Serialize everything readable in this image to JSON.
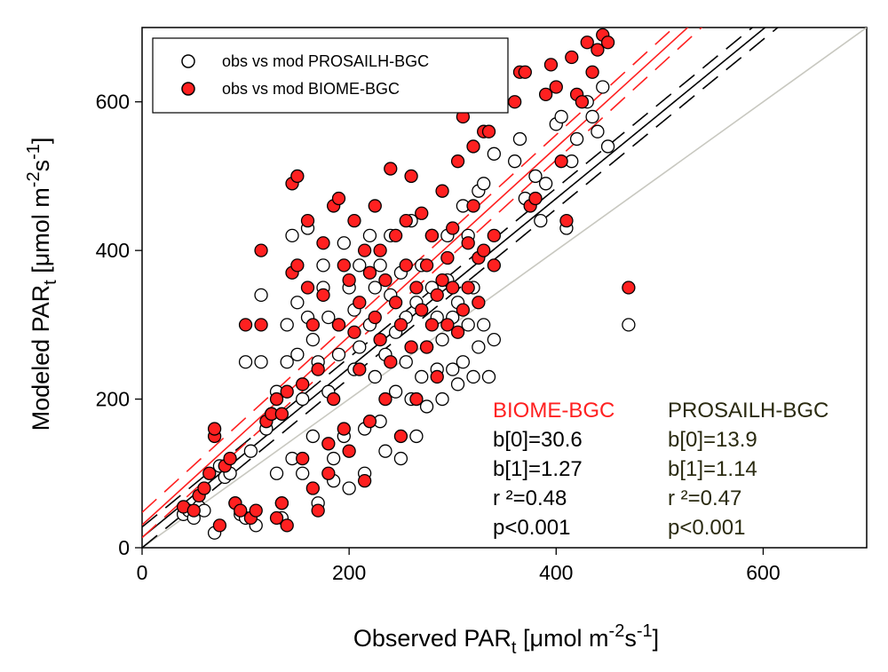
{
  "chart_data": {
    "type": "scatter",
    "xlim": [
      0,
      700
    ],
    "ylim": [
      0,
      700
    ],
    "x_ticks": [
      0,
      200,
      400,
      600
    ],
    "y_ticks": [
      0,
      200,
      400,
      600
    ],
    "xlabel": {
      "main": "Observed PAR",
      "sub": "t",
      "unit_pre": " [μmol m",
      "sup1": "-2",
      "mid": "s",
      "sup2": "-1",
      "end": "]"
    },
    "ylabel": {
      "main": "Modeled PAR",
      "sub": "t",
      "unit_pre": " [μmol m",
      "sup1": "-2",
      "mid": "s",
      "sup2": "-1",
      "end": "]"
    },
    "legend": {
      "position": "top-left",
      "entries": [
        {
          "label": "obs vs mod PROSAILH-BGC",
          "marker": "open-circle"
        },
        {
          "label": "obs vs mod BIOME-BGC",
          "marker": "filled-circle"
        }
      ]
    },
    "reference_line": {
      "name": "1:1",
      "intercept": 0,
      "slope": 1,
      "color": "#c8c8c0"
    },
    "series": [
      {
        "name": "PROSAILH-BGC",
        "marker": "open-circle",
        "stats_color": "#2a2a10",
        "stats": {
          "title": "PROSAILH-BGC",
          "b0": "b[0]=13.9",
          "b1": "b[1]=1.14",
          "r2": "r ²=0.47",
          "p": "p<0.001"
        },
        "fit": {
          "intercept": 13.9,
          "slope": 1.14,
          "ci_offset": 14,
          "color": "#000000"
        },
        "points": [
          [
            40,
            45
          ],
          [
            45,
            50
          ],
          [
            50,
            40
          ],
          [
            55,
            55
          ],
          [
            60,
            50
          ],
          [
            70,
            20
          ],
          [
            75,
            110
          ],
          [
            80,
            95
          ],
          [
            85,
            100
          ],
          [
            90,
            60
          ],
          [
            95,
            45
          ],
          [
            100,
            40
          ],
          [
            100,
            250
          ],
          [
            105,
            130
          ],
          [
            110,
            30
          ],
          [
            115,
            340
          ],
          [
            115,
            250
          ],
          [
            120,
            160
          ],
          [
            125,
            180
          ],
          [
            130,
            210
          ],
          [
            130,
            100
          ],
          [
            135,
            60
          ],
          [
            135,
            40
          ],
          [
            140,
            300
          ],
          [
            140,
            250
          ],
          [
            145,
            120
          ],
          [
            145,
            420
          ],
          [
            150,
            330
          ],
          [
            150,
            260
          ],
          [
            155,
            200
          ],
          [
            155,
            100
          ],
          [
            160,
            310
          ],
          [
            160,
            430
          ],
          [
            165,
            280
          ],
          [
            165,
            150
          ],
          [
            170,
            60
          ],
          [
            170,
            250
          ],
          [
            175,
            350
          ],
          [
            175,
            380
          ],
          [
            180,
            310
          ],
          [
            180,
            210
          ],
          [
            185,
            120
          ],
          [
            185,
            90
          ],
          [
            190,
            260
          ],
          [
            190,
            300
          ],
          [
            195,
            410
          ],
          [
            195,
            150
          ],
          [
            200,
            350
          ],
          [
            200,
            80
          ],
          [
            205,
            240
          ],
          [
            205,
            320
          ],
          [
            210,
            270
          ],
          [
            210,
            380
          ],
          [
            215,
            160
          ],
          [
            215,
            100
          ],
          [
            220,
            420
          ],
          [
            220,
            300
          ],
          [
            225,
            350
          ],
          [
            225,
            230
          ],
          [
            230,
            380
          ],
          [
            230,
            170
          ],
          [
            235,
            260
          ],
          [
            235,
            130
          ],
          [
            240,
            340
          ],
          [
            240,
            420
          ],
          [
            245,
            290
          ],
          [
            245,
            210
          ],
          [
            250,
            370
          ],
          [
            250,
            120
          ],
          [
            255,
            250
          ],
          [
            255,
            310
          ],
          [
            260,
            200
          ],
          [
            260,
            440
          ],
          [
            265,
            330
          ],
          [
            265,
            150
          ],
          [
            270,
            230
          ],
          [
            270,
            380
          ],
          [
            275,
            270
          ],
          [
            275,
            190
          ],
          [
            280,
            350
          ],
          [
            280,
            420
          ],
          [
            285,
            240
          ],
          [
            285,
            310
          ],
          [
            290,
            280
          ],
          [
            290,
            200
          ],
          [
            295,
            360
          ],
          [
            295,
            420
          ],
          [
            300,
            240
          ],
          [
            300,
            310
          ],
          [
            305,
            330
          ],
          [
            305,
            220
          ],
          [
            310,
            250
          ],
          [
            310,
            460
          ],
          [
            315,
            300
          ],
          [
            315,
            420
          ],
          [
            320,
            350
          ],
          [
            320,
            230
          ],
          [
            325,
            270
          ],
          [
            325,
            480
          ],
          [
            330,
            490
          ],
          [
            330,
            300
          ],
          [
            335,
            230
          ],
          [
            340,
            530
          ],
          [
            340,
            280
          ],
          [
            360,
            520
          ],
          [
            365,
            550
          ],
          [
            370,
            470
          ],
          [
            380,
            500
          ],
          [
            385,
            440
          ],
          [
            390,
            490
          ],
          [
            400,
            570
          ],
          [
            405,
            580
          ],
          [
            410,
            430
          ],
          [
            415,
            520
          ],
          [
            420,
            550
          ],
          [
            430,
            600
          ],
          [
            435,
            580
          ],
          [
            440,
            560
          ],
          [
            445,
            620
          ],
          [
            450,
            540
          ],
          [
            470,
            300
          ]
        ]
      },
      {
        "name": "BIOME-BGC",
        "marker": "filled-circle",
        "stats_color": "#ff2020",
        "stats": {
          "title": "BIOME-BGC",
          "b0": "b[0]=30.6",
          "b1": "b[1]=1.27",
          "r2": "r ²=0.48",
          "p": "p<0.001"
        },
        "fit": {
          "intercept": 30.6,
          "slope": 1.27,
          "ci_offset": 17,
          "color": "#ff2020"
        },
        "points": [
          [
            40,
            55
          ],
          [
            50,
            50
          ],
          [
            55,
            70
          ],
          [
            60,
            80
          ],
          [
            65,
            100
          ],
          [
            70,
            150
          ],
          [
            70,
            160
          ],
          [
            75,
            30
          ],
          [
            80,
            110
          ],
          [
            85,
            120
          ],
          [
            90,
            60
          ],
          [
            95,
            50
          ],
          [
            100,
            300
          ],
          [
            105,
            40
          ],
          [
            110,
            50
          ],
          [
            115,
            400
          ],
          [
            115,
            300
          ],
          [
            120,
            170
          ],
          [
            125,
            180
          ],
          [
            130,
            200
          ],
          [
            130,
            40
          ],
          [
            135,
            60
          ],
          [
            135,
            180
          ],
          [
            140,
            210
          ],
          [
            140,
            30
          ],
          [
            145,
            370
          ],
          [
            145,
            490
          ],
          [
            150,
            500
          ],
          [
            150,
            380
          ],
          [
            155,
            120
          ],
          [
            155,
            220
          ],
          [
            160,
            440
          ],
          [
            160,
            350
          ],
          [
            165,
            300
          ],
          [
            165,
            80
          ],
          [
            170,
            240
          ],
          [
            170,
            50
          ],
          [
            175,
            410
          ],
          [
            175,
            340
          ],
          [
            180,
            140
          ],
          [
            180,
            100
          ],
          [
            185,
            460
          ],
          [
            185,
            200
          ],
          [
            190,
            470
          ],
          [
            190,
            300
          ],
          [
            195,
            380
          ],
          [
            195,
            160
          ],
          [
            200,
            360
          ],
          [
            200,
            130
          ],
          [
            205,
            290
          ],
          [
            205,
            440
          ],
          [
            210,
            240
          ],
          [
            210,
            330
          ],
          [
            215,
            400
          ],
          [
            215,
            90
          ],
          [
            220,
            370
          ],
          [
            220,
            170
          ],
          [
            225,
            310
          ],
          [
            225,
            460
          ],
          [
            230,
            400
          ],
          [
            230,
            280
          ],
          [
            235,
            360
          ],
          [
            235,
            200
          ],
          [
            240,
            510
          ],
          [
            240,
            250
          ],
          [
            245,
            330
          ],
          [
            245,
            420
          ],
          [
            250,
            300
          ],
          [
            250,
            150
          ],
          [
            255,
            440
          ],
          [
            255,
            380
          ],
          [
            260,
            500
          ],
          [
            260,
            270
          ],
          [
            265,
            350
          ],
          [
            265,
            200
          ],
          [
            270,
            320
          ],
          [
            270,
            450
          ],
          [
            275,
            380
          ],
          [
            275,
            270
          ],
          [
            280,
            300
          ],
          [
            280,
            420
          ],
          [
            285,
            340
          ],
          [
            285,
            230
          ],
          [
            290,
            360
          ],
          [
            290,
            480
          ],
          [
            295,
            300
          ],
          [
            295,
            390
          ],
          [
            300,
            350
          ],
          [
            300,
            430
          ],
          [
            305,
            290
          ],
          [
            305,
            520
          ],
          [
            310,
            320
          ],
          [
            310,
            580
          ],
          [
            315,
            410
          ],
          [
            315,
            350
          ],
          [
            320,
            540
          ],
          [
            320,
            460
          ],
          [
            325,
            390
          ],
          [
            325,
            330
          ],
          [
            330,
            560
          ],
          [
            330,
            400
          ],
          [
            335,
            560
          ],
          [
            340,
            420
          ],
          [
            340,
            380
          ],
          [
            360,
            600
          ],
          [
            365,
            640
          ],
          [
            370,
            640
          ],
          [
            375,
            460
          ],
          [
            380,
            470
          ],
          [
            390,
            610
          ],
          [
            395,
            650
          ],
          [
            400,
            620
          ],
          [
            405,
            520
          ],
          [
            410,
            440
          ],
          [
            415,
            660
          ],
          [
            420,
            610
          ],
          [
            425,
            600
          ],
          [
            430,
            680
          ],
          [
            435,
            640
          ],
          [
            440,
            670
          ],
          [
            445,
            690
          ],
          [
            450,
            680
          ],
          [
            470,
            350
          ]
        ]
      }
    ]
  }
}
